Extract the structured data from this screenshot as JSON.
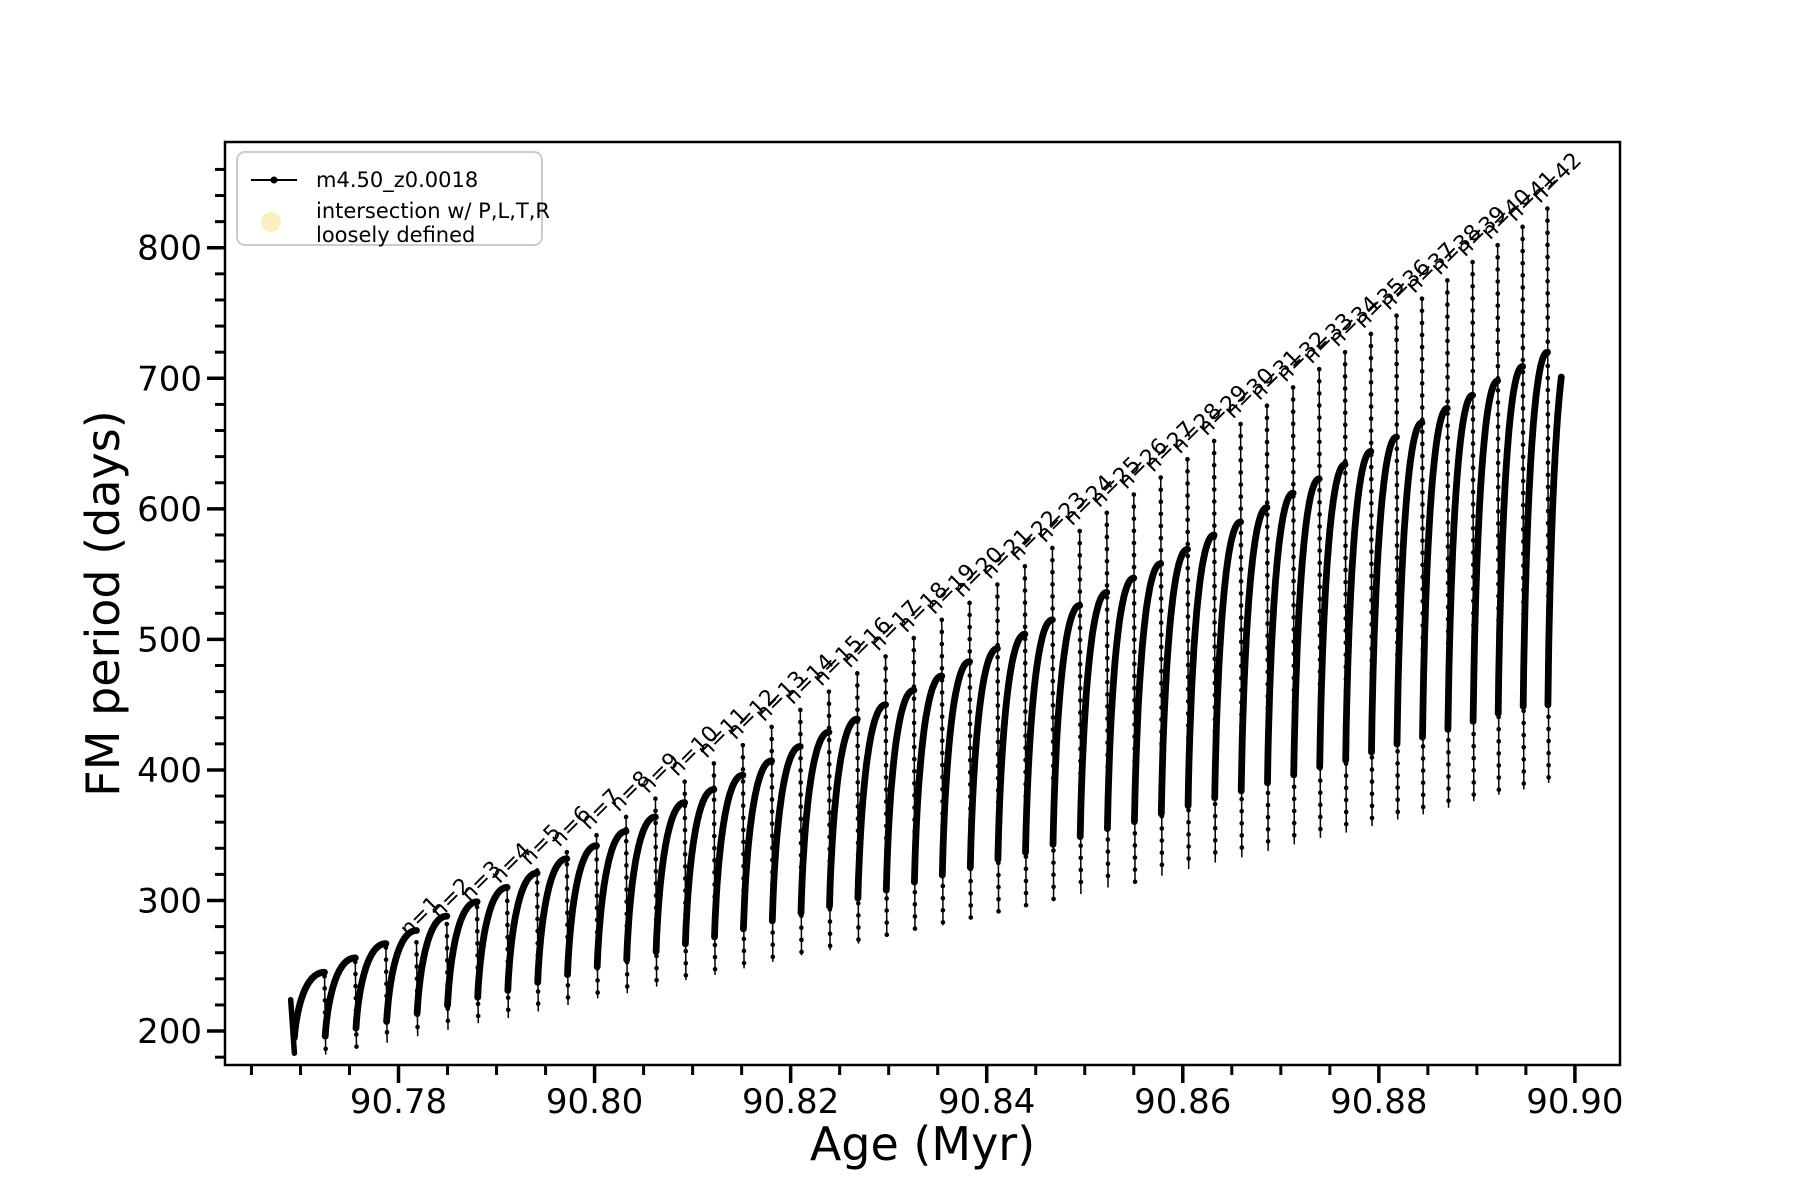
{
  "page": {
    "background": "#ffffff"
  },
  "legend": {
    "entry1_label": "m4.50_z0.0018",
    "entry2_label_line1": "intersection w/ P,L,T,R",
    "entry2_label_line2": "loosely defined",
    "entry2_marker_color": "#f7f2bd",
    "line_color": "#000000",
    "border_color": "#cccccc"
  },
  "chart_data": {
    "type": "line",
    "title": "",
    "xlabel": "Age (Myr)",
    "ylabel": "FM period (days)",
    "xlim": [
      90.7623,
      90.9046
    ],
    "ylim": [
      174,
      881
    ],
    "grid": false,
    "legend_position": "upper left",
    "series": [
      {
        "name": "m4.50_z0.0018",
        "color": "#000000",
        "marker": "point"
      },
      {
        "name": "intersection w/ P,L,T,R loosely defined",
        "color": "#f7f2bd",
        "marker": "circle"
      }
    ],
    "x_major_ticks": [
      {
        "v": 90.78,
        "label": "90.78"
      },
      {
        "v": 90.8,
        "label": "90.80"
      },
      {
        "v": 90.82,
        "label": "90.82"
      },
      {
        "v": 90.84,
        "label": "90.84"
      },
      {
        "v": 90.86,
        "label": "90.86"
      },
      {
        "v": 90.88,
        "label": "90.88"
      },
      {
        "v": 90.9,
        "label": "90.90"
      }
    ],
    "x_minor_ticks": {
      "start": 90.765,
      "end": 90.9046,
      "step": 0.005
    },
    "y_major_ticks": [
      {
        "v": 200,
        "label": "200"
      },
      {
        "v": 300,
        "label": "300"
      },
      {
        "v": 400,
        "label": "400"
      },
      {
        "v": 500,
        "label": "500"
      },
      {
        "v": 600,
        "label": "600"
      },
      {
        "v": 700,
        "label": "700"
      },
      {
        "v": 800,
        "label": "800"
      }
    ],
    "y_minor_ticks": {
      "start": 180,
      "end": 866,
      "step": 20
    },
    "start_segment": {
      "age_from": 90.769,
      "value_from": 224,
      "age_to": 90.76938,
      "value_to": 183
    },
    "cycles_schema": [
      "start_age_myr",
      "width_myr",
      "arch_peak_days",
      "notch_min_days",
      "spike_top_days",
      "spike_label"
    ],
    "cycles": [
      [
        90.7693,
        0.003154,
        245,
        182,
        null,
        null
      ],
      [
        90.77245,
        0.00314,
        256,
        187,
        null,
        null
      ],
      [
        90.77559,
        0.003126,
        267,
        191,
        null,
        null
      ],
      [
        90.77872,
        0.003111,
        277,
        196,
        268,
        "n=1"
      ],
      [
        90.78183,
        0.003097,
        288,
        201,
        282,
        "n=2"
      ],
      [
        90.78493,
        0.003083,
        299,
        206,
        295,
        "n=3"
      ],
      [
        90.78801,
        0.003069,
        310,
        210,
        309,
        "n=4"
      ],
      [
        90.79108,
        0.003055,
        321,
        215,
        323,
        "n=5"
      ],
      [
        90.79413,
        0.00304,
        332,
        220,
        337,
        "n=6"
      ],
      [
        90.79717,
        0.003026,
        342,
        225,
        350,
        "n=7"
      ],
      [
        90.8002,
        0.003012,
        353,
        229,
        364,
        "n=8"
      ],
      [
        90.80321,
        0.002998,
        364,
        234,
        378,
        "n=9"
      ],
      [
        90.80621,
        0.002984,
        375,
        239,
        391,
        "n=10"
      ],
      [
        90.8092,
        0.00297,
        385,
        243,
        405,
        "n=11"
      ],
      [
        90.81217,
        0.002955,
        396,
        248,
        419,
        "n=12"
      ],
      [
        90.81512,
        0.002941,
        407,
        253,
        433,
        "n=13"
      ],
      [
        90.81806,
        0.002927,
        418,
        258,
        446,
        "n=14"
      ],
      [
        90.82099,
        0.002913,
        429,
        262,
        460,
        "n=15"
      ],
      [
        90.8239,
        0.002899,
        439,
        267,
        474,
        "n=16"
      ],
      [
        90.8268,
        0.002885,
        450,
        272,
        487,
        "n=17"
      ],
      [
        90.82969,
        0.00287,
        461,
        277,
        501,
        "n=18"
      ],
      [
        90.83256,
        0.002856,
        472,
        281,
        515,
        "n=19"
      ],
      [
        90.83541,
        0.002842,
        483,
        286,
        528,
        "n=20"
      ],
      [
        90.83826,
        0.002828,
        493,
        291,
        542,
        "n=21"
      ],
      [
        90.84108,
        0.002814,
        504,
        295,
        556,
        "n=22"
      ],
      [
        90.8439,
        0.0028,
        515,
        300,
        570,
        "n=23"
      ],
      [
        90.8467,
        0.002785,
        526,
        305,
        583,
        "n=24"
      ],
      [
        90.84948,
        0.002771,
        536,
        310,
        597,
        "n=25"
      ],
      [
        90.85225,
        0.002757,
        547,
        314,
        611,
        "n=26"
      ],
      [
        90.85501,
        0.002743,
        558,
        319,
        624,
        "n=27"
      ],
      [
        90.85775,
        0.002729,
        569,
        324,
        638,
        "n=28"
      ],
      [
        90.86048,
        0.002715,
        580,
        329,
        652,
        "n=29"
      ],
      [
        90.8632,
        0.0027,
        590,
        333,
        665,
        "n=30"
      ],
      [
        90.8659,
        0.002686,
        601,
        338,
        679,
        "n=31"
      ],
      [
        90.86858,
        0.002672,
        612,
        343,
        693,
        "n=32"
      ],
      [
        90.87126,
        0.002658,
        623,
        348,
        707,
        "n=33"
      ],
      [
        90.87391,
        0.002644,
        634,
        352,
        720,
        "n=34"
      ],
      [
        90.87656,
        0.00263,
        644,
        357,
        734,
        "n=35"
      ],
      [
        90.87919,
        0.002615,
        655,
        362,
        748,
        "n=36"
      ],
      [
        90.8818,
        0.002601,
        666,
        366,
        761,
        "n=37"
      ],
      [
        90.8844,
        0.002587,
        677,
        371,
        775,
        "n=38"
      ],
      [
        90.88699,
        0.002573,
        687,
        376,
        789,
        "n=39"
      ],
      [
        90.88956,
        0.002559,
        698,
        381,
        802,
        "n=40"
      ],
      [
        90.89212,
        0.002545,
        709,
        385,
        816,
        "n=41"
      ],
      [
        90.89467,
        0.00253,
        720,
        390,
        830,
        "n=42"
      ]
    ],
    "final_partial_arch": {
      "start_age": 90.8972,
      "width_myr": 0.00253,
      "arch_peak_days": 732,
      "start_min_days": 390,
      "fraction_drawn": 0.56
    }
  }
}
